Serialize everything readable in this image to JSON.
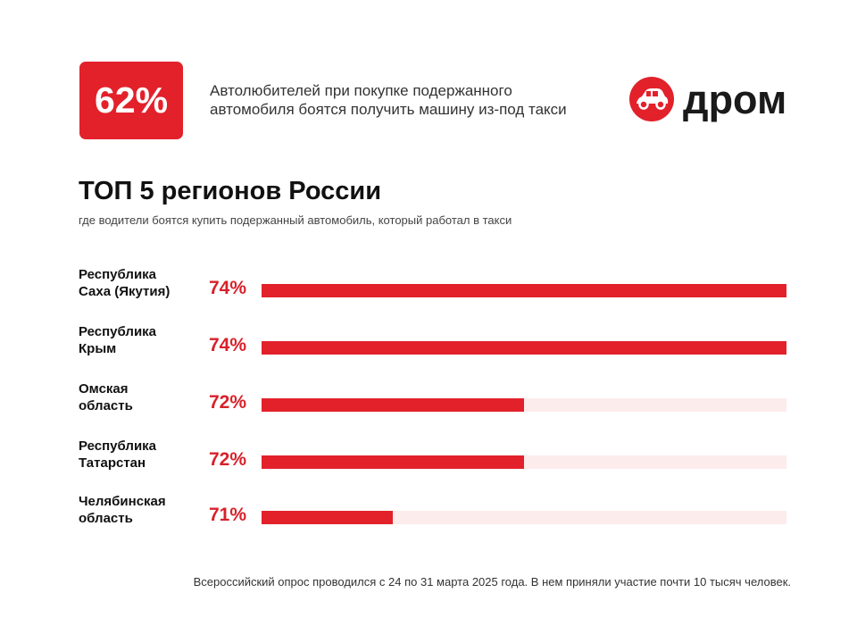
{
  "header": {
    "stat_value": "62%",
    "stat_text_line1": "Автолюбителей при покупке подержанного",
    "stat_text_line2": "автомобиля боятся получить машину из-под такси",
    "logo_text": "дром",
    "accent_color": "#e2212b"
  },
  "chart_data": {
    "type": "bar",
    "orientation": "horizontal",
    "title": "ТОП 5 регионов России",
    "subtitle": "где водители боятся купить подержанный автомобиль, который работал в такси",
    "categories": [
      [
        "Республика",
        "Саха (Якутия)"
      ],
      [
        "Республика",
        "Крым"
      ],
      [
        "Омская",
        "область"
      ],
      [
        "Республика",
        "Татарстан"
      ],
      [
        "Челябинская",
        "область"
      ]
    ],
    "values": [
      74,
      74,
      72,
      72,
      71
    ],
    "value_labels": [
      "74%",
      "74%",
      "72%",
      "72%",
      "71%"
    ],
    "unit": "%",
    "xlim": [
      70,
      74
    ],
    "grid": false,
    "legend": "none",
    "bar_color": "#e2212b",
    "track_color": "#fcecec"
  },
  "footer": {
    "note": "Всероссийский опрос проводился с 24 по 31 марта 2025 года. В нем приняли участие почти 10 тысяч человек."
  }
}
